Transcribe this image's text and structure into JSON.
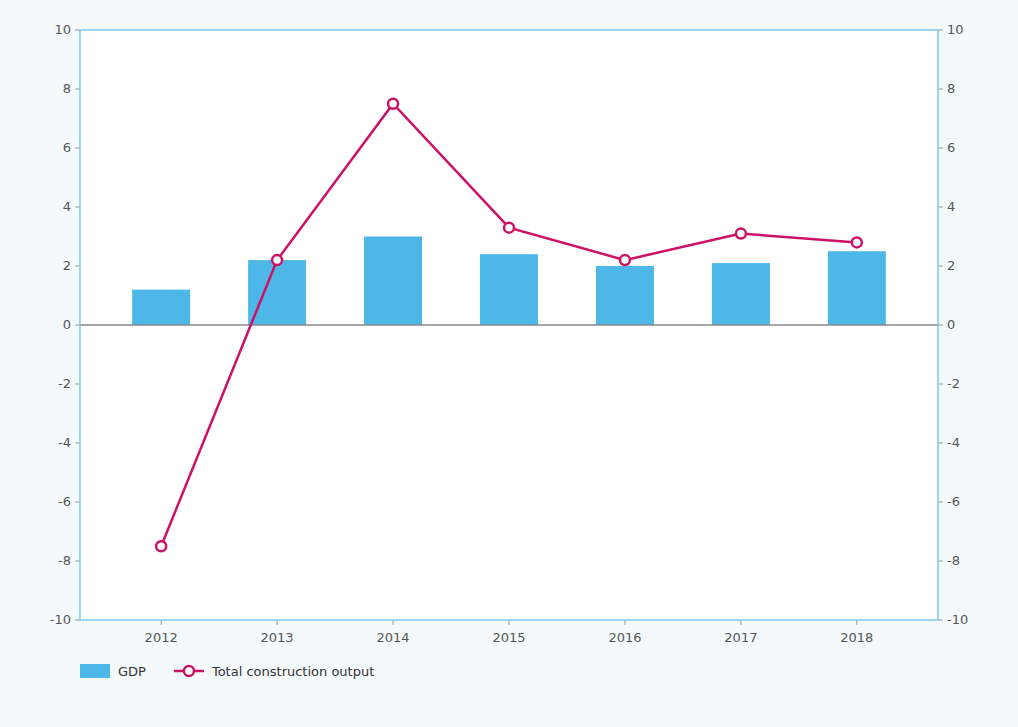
{
  "chart_data": {
    "type": "bar",
    "x": [
      2012,
      2013,
      2014,
      2015,
      2016,
      2017,
      2018
    ],
    "xlim": [
      2011.3,
      2018.7
    ],
    "xticks": [
      2012,
      2013,
      2014,
      2015,
      2016,
      2017,
      2018
    ],
    "series": [
      {
        "name": "GDP",
        "type": "bar",
        "color": "#4db8e8",
        "values": [
          1.2,
          2.2,
          3.0,
          2.4,
          2.0,
          2.1,
          2.5
        ]
      },
      {
        "name": "Total construction output",
        "type": "line",
        "color": "#cc1166",
        "marker": "circle",
        "axis": "y2",
        "values": [
          -7.5,
          2.2,
          7.5,
          3.3,
          2.2,
          3.1,
          2.8
        ]
      }
    ],
    "ylim": [
      -10,
      10
    ],
    "yticks": [
      -10,
      -8,
      -6,
      -4,
      -2,
      0,
      2,
      4,
      6,
      8,
      10
    ],
    "y2lim": [
      -10,
      10
    ],
    "y2ticks": [
      -10,
      -8,
      -6,
      -4,
      -2,
      0,
      2,
      4,
      6,
      8,
      10
    ],
    "grid": false,
    "legend": "bottom"
  }
}
